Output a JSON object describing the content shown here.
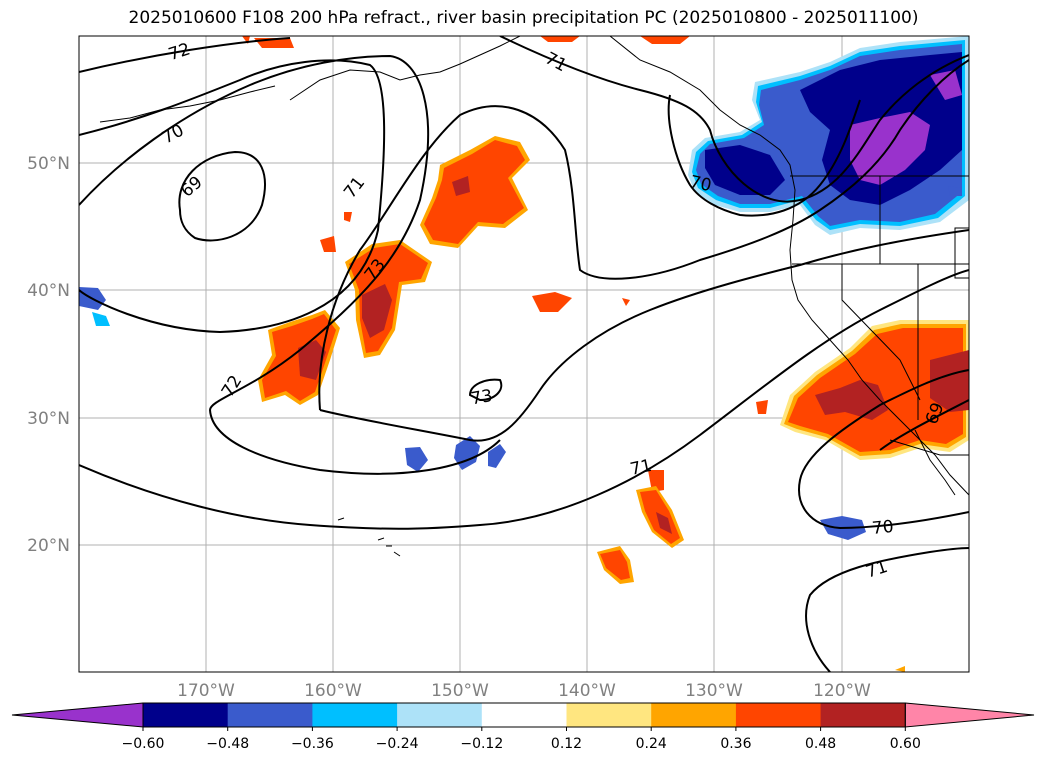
{
  "title": "2025010600 F108 200 hPa refract., river basin precipitation PC (2025010800 - 2025011100)",
  "map": {
    "lat_labels": [
      "50°N",
      "40°N",
      "30°N",
      "20°N"
    ],
    "lon_labels": [
      "170°W",
      "160°W",
      "150°W",
      "140°W",
      "130°W",
      "120°W"
    ],
    "contour_labels": [
      "72",
      "71",
      "70",
      "69",
      "71",
      "73",
      "72",
      "73",
      "71",
      "70",
      "70",
      "71",
      "69"
    ],
    "colors": {
      "neg_060": "#9932CC",
      "neg_048": "#00008B",
      "neg_036": "#3A5BCC",
      "neg_024": "#00BFFF",
      "neg_012": "#ADE2F8",
      "pos_012": "#FFE680",
      "pos_024": "#FFA500",
      "pos_036": "#FF4500",
      "pos_048": "#B22222",
      "pos_060": "#FF85A8"
    }
  },
  "colorbar": {
    "ticks": [
      "−0.60",
      "−0.48",
      "−0.36",
      "−0.24",
      "−0.12",
      "0.12",
      "0.24",
      "0.36",
      "0.48",
      "0.60"
    ],
    "colors": [
      "#9932CC",
      "#00008B",
      "#3A5BCC",
      "#00BFFF",
      "#ADE2F8",
      "#FFFFFF",
      "#FFE680",
      "#FFA500",
      "#FF4500",
      "#B22222",
      "#FF85A8"
    ]
  }
}
